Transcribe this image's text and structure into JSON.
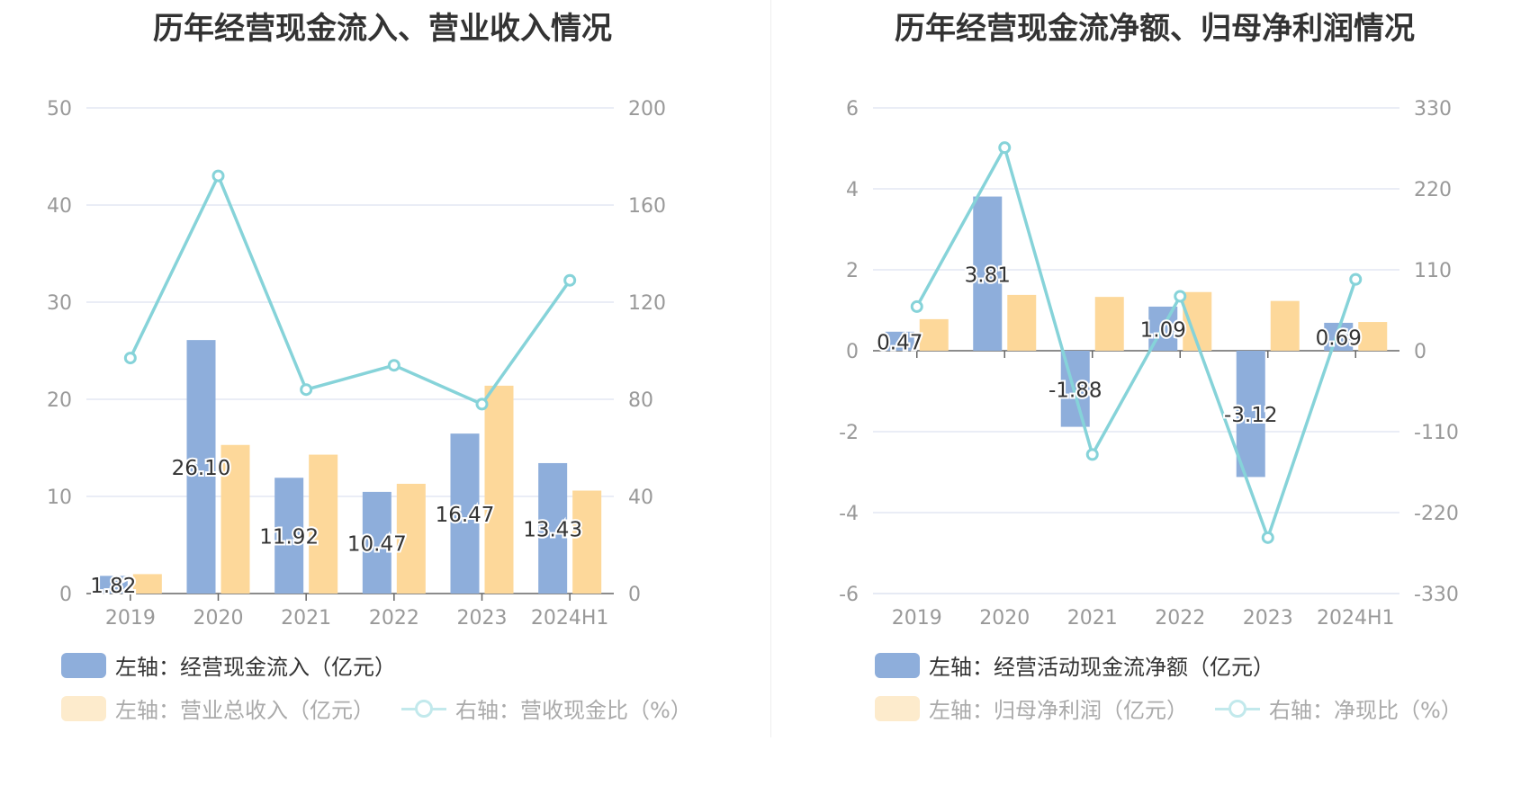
{
  "colors": {
    "blue": "#8eaedb",
    "orange": "#fdd89a",
    "teal": "#86d3d9",
    "blue_faded": "#c6d6ed",
    "orange_faded": "#fdebcc",
    "teal_faded": "#c2e9ec",
    "grid": "#e3e7f3",
    "axis_text": "#999999",
    "axis_line": "#666666"
  },
  "chart_data": [
    {
      "type": "bar",
      "title": "历年经营现金流入、营业收入情况",
      "categories": [
        "2019",
        "2020",
        "2021",
        "2022",
        "2023",
        "2024H1"
      ],
      "left_axis": {
        "ylim": [
          0,
          50
        ],
        "ticks": [
          "0",
          "10",
          "20",
          "30",
          "40",
          "50"
        ]
      },
      "right_axis": {
        "ylim": [
          0,
          200
        ],
        "ticks": [
          "0",
          "40",
          "80",
          "120",
          "160",
          "200"
        ]
      },
      "series": [
        {
          "name": "左轴：经营现金流入（亿元）",
          "type": "bar",
          "axis": "left",
          "values": [
            1.82,
            26.1,
            11.92,
            10.47,
            16.47,
            13.43
          ],
          "labels": [
            "1.82",
            "26.10",
            "11.92",
            "10.47",
            "16.47",
            "13.43"
          ],
          "color_key": "blue",
          "legend_faded": false
        },
        {
          "name": "左轴：营业总收入（亿元）",
          "type": "bar",
          "axis": "left",
          "values": [
            2.0,
            15.3,
            14.3,
            11.3,
            21.4,
            10.6
          ],
          "color_key": "orange",
          "legend_faded": true
        },
        {
          "name": "右轴：营收现金比（%）",
          "type": "line",
          "axis": "right",
          "values": [
            97,
            172,
            84,
            94,
            78,
            129
          ],
          "color_key": "teal",
          "legend_faded": true
        }
      ]
    },
    {
      "type": "bar",
      "title": "历年经营现金流净额、归母净利润情况",
      "categories": [
        "2019",
        "2020",
        "2021",
        "2022",
        "2023",
        "2024H1"
      ],
      "left_axis": {
        "ylim": [
          -6,
          6
        ],
        "ticks": [
          "-6",
          "-4",
          "-2",
          "0",
          "2",
          "4",
          "6"
        ]
      },
      "right_axis": {
        "ylim": [
          -330,
          330
        ],
        "ticks": [
          "-330",
          "-220",
          "-110",
          "0",
          "110",
          "220",
          "330"
        ]
      },
      "series": [
        {
          "name": "左轴：经营活动现金流净额（亿元）",
          "type": "bar",
          "axis": "left",
          "values": [
            0.47,
            3.81,
            -1.88,
            1.09,
            -3.12,
            0.69
          ],
          "labels": [
            "0.47",
            "3.81",
            "-1.88",
            "1.09",
            "-3.12",
            "0.69"
          ],
          "color_key": "blue",
          "legend_faded": false
        },
        {
          "name": "左轴：归母净利润（亿元）",
          "type": "bar",
          "axis": "left",
          "values": [
            0.78,
            1.38,
            1.33,
            1.45,
            1.23,
            0.71
          ],
          "color_key": "orange",
          "legend_faded": true
        },
        {
          "name": "右轴：净现比（%）",
          "type": "line",
          "axis": "right",
          "values": [
            60,
            276,
            -141,
            74,
            -254,
            97
          ],
          "color_key": "teal",
          "legend_faded": true
        }
      ]
    }
  ]
}
